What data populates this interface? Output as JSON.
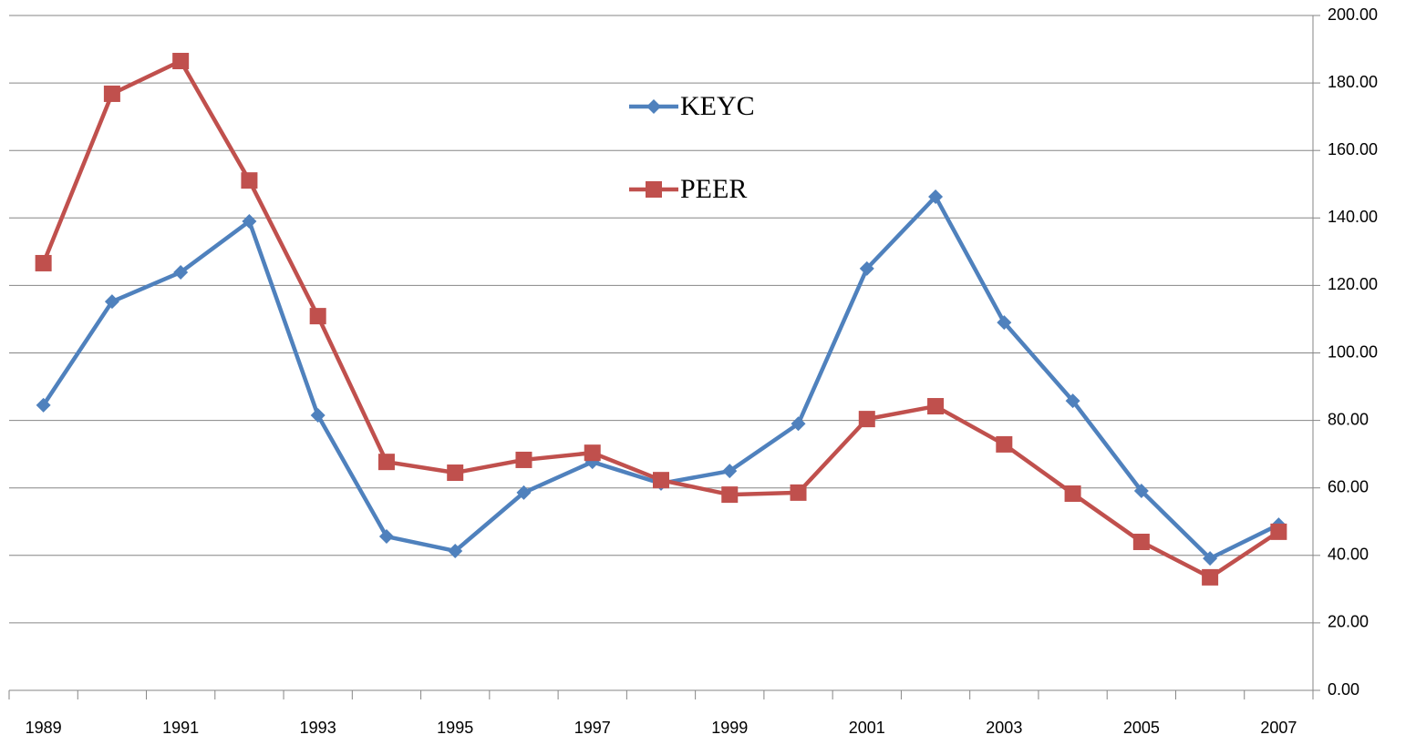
{
  "chart_data": {
    "type": "line",
    "categories": [
      "1989",
      null,
      "1991",
      null,
      "1993",
      null,
      "1995",
      null,
      "1997",
      null,
      "1999",
      null,
      "2001",
      null,
      "2003",
      null,
      "2005",
      null,
      "2007"
    ],
    "series": [
      {
        "name": "KEYC",
        "color": "#4f81bd",
        "marker": "diamond",
        "values": [
          84.5,
          115.2,
          123.9,
          139,
          81.5,
          45.6,
          41.3,
          58.6,
          67.7,
          61.3,
          65,
          79,
          125,
          146.3,
          109,
          85.8,
          59.1,
          39.1,
          49.1
        ]
      },
      {
        "name": "PEER",
        "color": "#c0504d",
        "marker": "square",
        "values": [
          126.6,
          176.8,
          186.5,
          151.1,
          110.9,
          67.7,
          64.5,
          68.3,
          70.4,
          62.3,
          58,
          58.6,
          80.4,
          84.2,
          72.9,
          58.3,
          44,
          33.5,
          47
        ]
      }
    ],
    "ylim": [
      0,
      200
    ],
    "yticks": [
      {
        "value": 0,
        "label": "0.00"
      },
      {
        "value": 20,
        "label": "20.00"
      },
      {
        "value": 40,
        "label": "40.00"
      },
      {
        "value": 60,
        "label": "60.00"
      },
      {
        "value": 80,
        "label": "80.00"
      },
      {
        "value": 100,
        "label": "100.00"
      },
      {
        "value": 120,
        "label": "120.00"
      },
      {
        "value": 140,
        "label": "140.00"
      },
      {
        "value": 160,
        "label": "160.00"
      },
      {
        "value": 180,
        "label": "180.00"
      },
      {
        "value": 200,
        "label": "200.00"
      }
    ],
    "yaxis_side": "right",
    "grid": true,
    "legend": "top-center"
  }
}
